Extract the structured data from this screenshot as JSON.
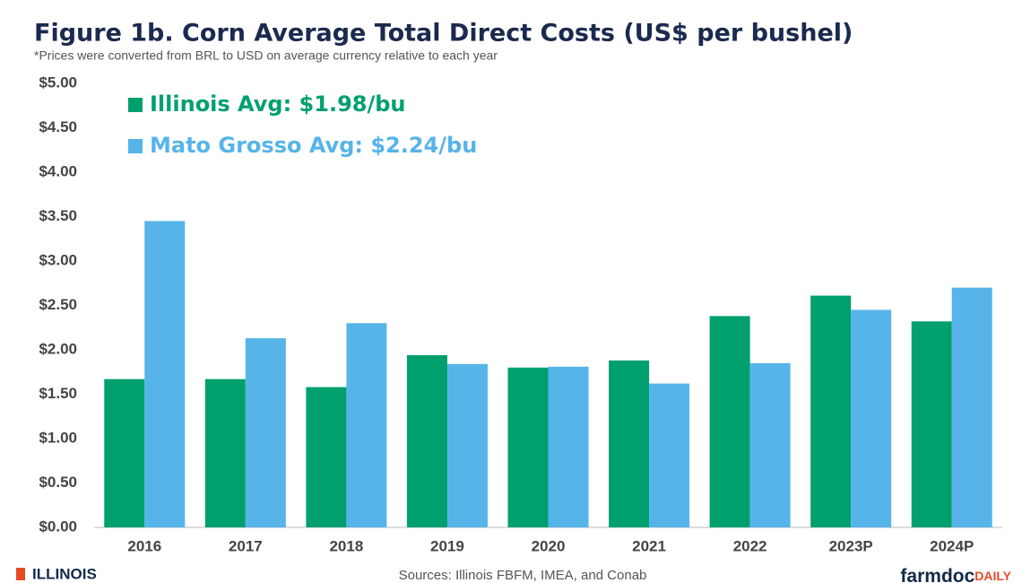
{
  "chart_data": {
    "type": "bar",
    "title": "Figure 1b. Corn Average Total Direct Costs (US$ per bushel)",
    "subtitle": "*Prices were converted from BRL to USD on average currency relative to each year",
    "categories": [
      "2016",
      "2017",
      "2018",
      "2019",
      "2020",
      "2021",
      "2022",
      "2023P",
      "2024P"
    ],
    "series": [
      {
        "name": "Illinois Avg: $1.98/bu",
        "color": "#00a06e",
        "values": [
          1.67,
          1.67,
          1.58,
          1.94,
          1.8,
          1.88,
          2.38,
          2.61,
          2.32
        ]
      },
      {
        "name": "Mato Grosso Avg: $2.24/bu",
        "color": "#56b4e9",
        "values": [
          3.45,
          2.13,
          2.3,
          1.84,
          1.81,
          1.62,
          1.85,
          2.45,
          2.7
        ]
      }
    ],
    "ylim": [
      0,
      5
    ],
    "yticks": [
      {
        "value": 0,
        "label": "$0.00"
      },
      {
        "value": 0.5,
        "label": "$0.50"
      },
      {
        "value": 1,
        "label": "$1.00"
      },
      {
        "value": 1.5,
        "label": "$1.50"
      },
      {
        "value": 2,
        "label": "$2.00"
      },
      {
        "value": 2.5,
        "label": "$2.50"
      },
      {
        "value": 3,
        "label": "$3.00"
      },
      {
        "value": 3.5,
        "label": "$3.50"
      },
      {
        "value": 4,
        "label": "$4.00"
      },
      {
        "value": 4.5,
        "label": "$4.50"
      },
      {
        "value": 5,
        "label": "$5.00"
      }
    ],
    "grid": false,
    "legend": "upper left",
    "logo": "ILLINOIS",
    "source": "Sources: Illinois FBFM, IMEA, and Conab",
    "brand_main": "farmdoc",
    "brand_sub": "DAILY"
  }
}
